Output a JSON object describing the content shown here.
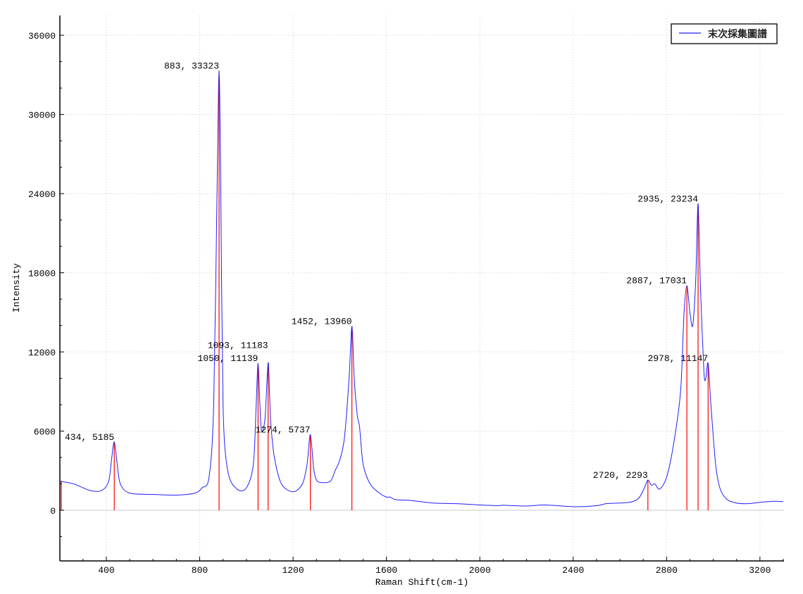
{
  "chart_data": {
    "type": "line",
    "title": "",
    "xlabel": "Raman Shift(cm-1)",
    "ylabel": "Intensity",
    "xlim": [
      201,
      3303
    ],
    "ylim": [
      -3840,
      37500
    ],
    "x_ticks": [
      400,
      800,
      1200,
      1600,
      2000,
      2400,
      2800,
      3200
    ],
    "y_ticks": [
      0,
      6000,
      12000,
      18000,
      24000,
      30000,
      36000
    ],
    "grid": true,
    "legend": {
      "position": "top-right",
      "entries": [
        "末次採集圖譜"
      ]
    },
    "colors": {
      "series": "#2020ff",
      "peak_markers": "#ff0000",
      "zero_line": "#c8c8c8",
      "grid": "#c8c8c8"
    },
    "series": [
      {
        "name": "末次採集圖譜",
        "x": [
          201,
          260,
          330,
          380,
          410,
          422,
          434,
          446,
          460,
          500,
          600,
          700,
          780,
          810,
          840,
          860,
          875,
          883,
          890,
          900,
          920,
          960,
          1000,
          1030,
          1042,
          1050,
          1058,
          1065,
          1080,
          1093,
          1100,
          1105,
          1120,
          1150,
          1200,
          1240,
          1260,
          1274,
          1288,
          1300,
          1320,
          1360,
          1380,
          1400,
          1420,
          1440,
          1452,
          1462,
          1475,
          1485,
          1500,
          1530,
          1570,
          1600,
          1615,
          1640,
          1700,
          1800,
          1900,
          2000,
          2080,
          2100,
          2200,
          2280,
          2400,
          2500,
          2540,
          2560,
          2640,
          2680,
          2705,
          2720,
          2735,
          2750,
          2770,
          2800,
          2830,
          2860,
          2875,
          2887,
          2900,
          2912,
          2925,
          2935,
          2945,
          2960,
          2968,
          2978,
          2990,
          3010,
          3030,
          3060,
          3100,
          3150,
          3200,
          3260,
          3300
        ],
        "y": [
          2200,
          2000,
          1500,
          1500,
          2200,
          3800,
          5185,
          3600,
          2000,
          1300,
          1200,
          1150,
          1300,
          1700,
          2500,
          8000,
          25000,
          33323,
          25000,
          8000,
          3000,
          1600,
          1700,
          3500,
          8000,
          11139,
          8000,
          6000,
          7000,
          11183,
          8500,
          6500,
          4000,
          2000,
          1400,
          2000,
          3500,
          5737,
          3200,
          2300,
          2100,
          2200,
          3000,
          3800,
          5500,
          10000,
          13960,
          10000,
          7200,
          6300,
          3500,
          2000,
          1300,
          1000,
          1000,
          800,
          750,
          550,
          500,
          400,
          350,
          380,
          320,
          400,
          270,
          350,
          500,
          520,
          600,
          900,
          1700,
          2293,
          1900,
          2000,
          1600,
          2500,
          5000,
          9000,
          15000,
          17031,
          15000,
          14000,
          17500,
          23234,
          17000,
          10500,
          10000,
          11147,
          8000,
          3500,
          1600,
          800,
          550,
          500,
          600,
          680,
          650
        ]
      }
    ],
    "peak_markers": [
      {
        "x": 207,
        "y": 2240,
        "label": ""
      },
      {
        "x": 434,
        "y": 5185,
        "label": "434, 5185"
      },
      {
        "x": 883,
        "y": 33323,
        "label": "883, 33323"
      },
      {
        "x": 1050,
        "y": 11139,
        "label": "1050, 11139"
      },
      {
        "x": 1093,
        "y": 11183,
        "label": "1093, 11183"
      },
      {
        "x": 1274,
        "y": 5737,
        "label": "1274, 5737"
      },
      {
        "x": 1452,
        "y": 13960,
        "label": "1452, 13960"
      },
      {
        "x": 2720,
        "y": 2293,
        "label": "2720, 2293"
      },
      {
        "x": 2887,
        "y": 17031,
        "label": "2887, 17031"
      },
      {
        "x": 2935,
        "y": 23234,
        "label": "2935, 23234"
      },
      {
        "x": 2978,
        "y": 11147,
        "label": "2978, 11147"
      }
    ]
  }
}
